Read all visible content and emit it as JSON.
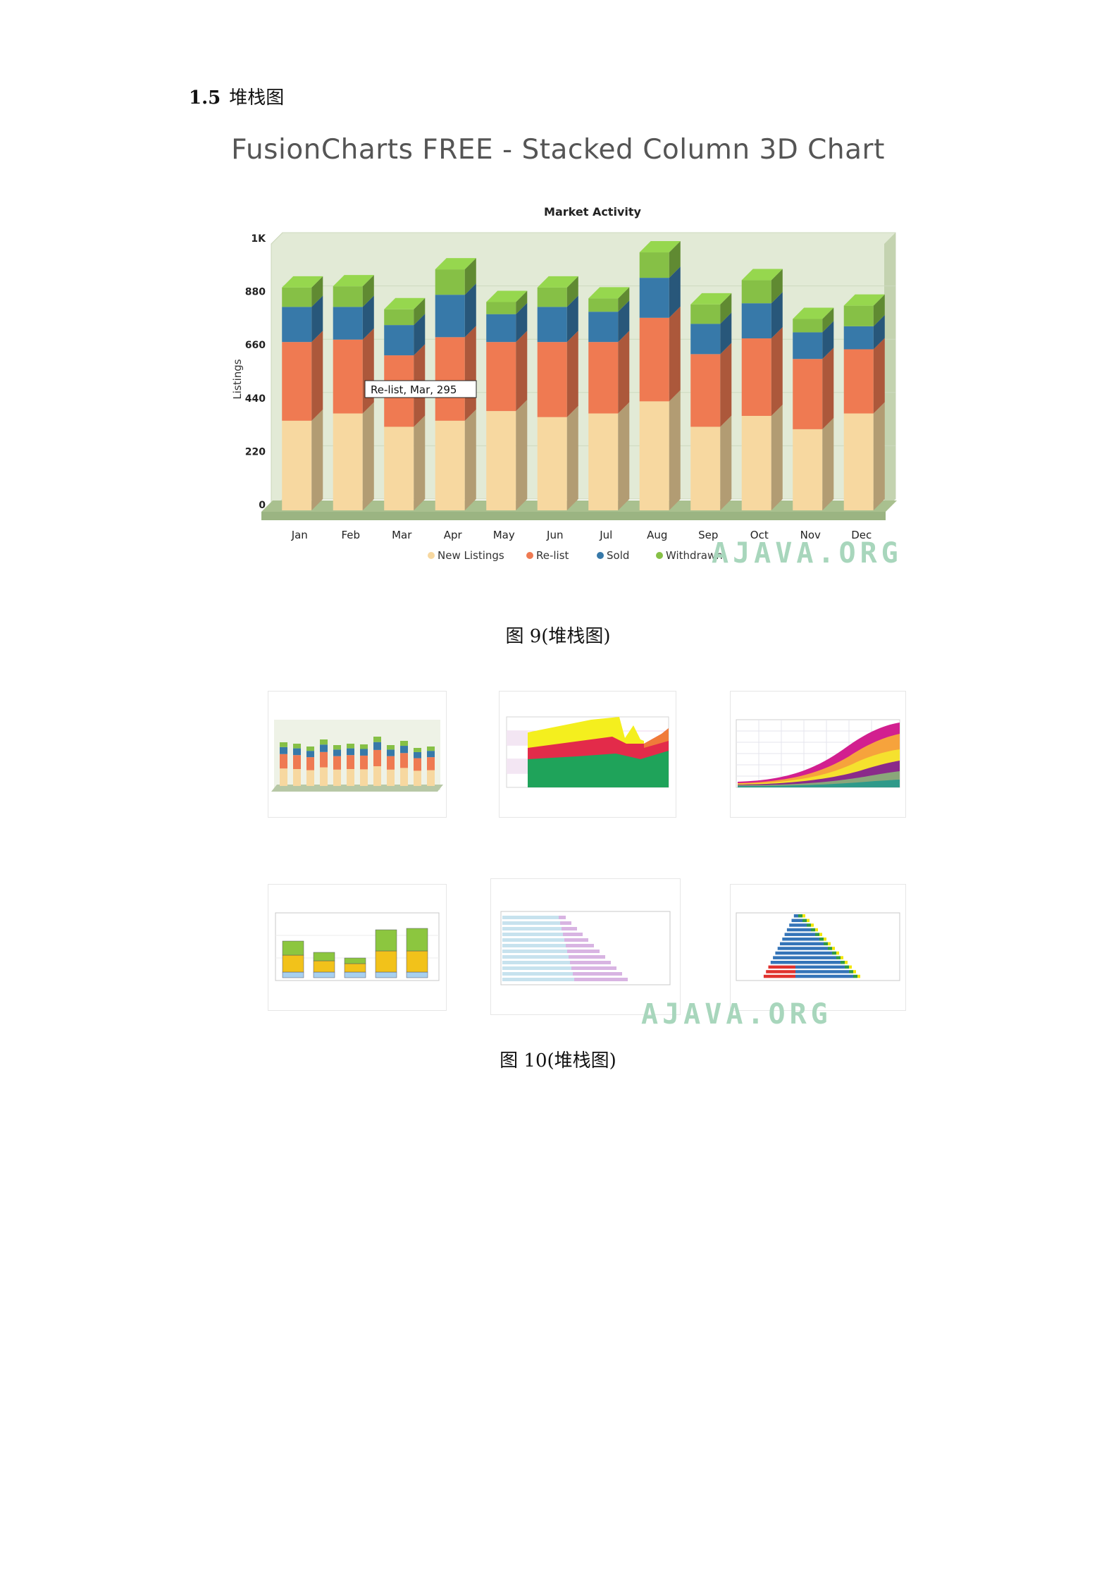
{
  "section": {
    "number": "1.5",
    "title": "堆栈图"
  },
  "figure9": {
    "heading": "FusionCharts FREE - Stacked Column 3D Chart",
    "caption": "图 9(堆栈图)",
    "watermark": "AJAVA.ORG",
    "tooltip": "Re-list, Mar, 295"
  },
  "figure10": {
    "caption": "图 10(堆栈图)",
    "watermark": "AJAVA.ORG"
  },
  "colors": {
    "new_listings": "#f7d8a0",
    "relist": "#ef7a52",
    "sold": "#3779a9",
    "withdrawn": "#86c046",
    "plot_bg": "#e4ecd8"
  },
  "chart_data": {
    "type": "bar",
    "title": "Market Activity",
    "xlabel": "",
    "ylabel": "Listings",
    "stacked": true,
    "ylim": [
      0,
      1100
    ],
    "yticks": [
      0,
      220,
      440,
      660,
      880,
      1100
    ],
    "ytick_labels": [
      "0",
      "220",
      "440",
      "660",
      "880",
      "1K"
    ],
    "categories": [
      "Jan",
      "Feb",
      "Mar",
      "Apr",
      "May",
      "Jun",
      "Jul",
      "Aug",
      "Sep",
      "Oct",
      "Nov",
      "Dec"
    ],
    "series": [
      {
        "name": "New Listings",
        "values": [
          370,
          400,
          345,
          370,
          410,
          385,
          400,
          450,
          345,
          390,
          335,
          400
        ]
      },
      {
        "name": "Re-list",
        "values": [
          325,
          305,
          295,
          345,
          285,
          310,
          295,
          345,
          300,
          320,
          290,
          265
        ]
      },
      {
        "name": "Sold",
        "values": [
          145,
          135,
          125,
          175,
          115,
          145,
          125,
          165,
          125,
          145,
          110,
          95
        ]
      },
      {
        "name": "Withdrawn",
        "values": [
          80,
          85,
          65,
          105,
          50,
          80,
          55,
          105,
          80,
          95,
          55,
          85
        ]
      }
    ],
    "grid": true,
    "legend": "bottom"
  }
}
